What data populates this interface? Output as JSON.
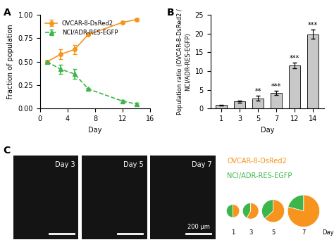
{
  "chart_data": [
    {
      "type": "line",
      "label": "A",
      "x_label": "Day",
      "y_label": "Fraction of population",
      "xlim": [
        0,
        16
      ],
      "xticks": [
        0,
        4,
        8,
        12,
        16
      ],
      "ylim": [
        0,
        1
      ],
      "yticks": [
        {
          "value": 0,
          "label": "0.00"
        },
        {
          "value": 0.25,
          "label": "0.25"
        },
        {
          "value": 0.5,
          "label": "0.50"
        },
        {
          "value": 0.75,
          "label": "0.75"
        },
        {
          "value": 1,
          "label": "1.00"
        }
      ],
      "legend": "upper left",
      "x": [
        1,
        3,
        5,
        7,
        12,
        14
      ],
      "series": [
        {
          "name": "OVCAR-8-DsRed2",
          "color": "#f7941d",
          "marker": "circle",
          "line_style": "solid",
          "values": [
            0.5,
            0.58,
            0.63,
            0.79,
            0.92,
            0.95
          ],
          "errors": [
            0.01,
            0.05,
            0.05,
            0.01,
            0.01,
            0.01
          ]
        },
        {
          "name": "NCI/ADR-RES-EGFP",
          "color": "#3cb54a",
          "marker": "triangle",
          "line_style": "dashed",
          "values": [
            0.5,
            0.42,
            0.37,
            0.21,
            0.08,
            0.05
          ],
          "errors": [
            0.01,
            0.05,
            0.05,
            0.01,
            0.01,
            0.01
          ]
        }
      ]
    },
    {
      "type": "bar",
      "label": "B",
      "x_label": "Day",
      "y_label": "Population ratio (OVCAR-8-DsRed2 /\nNCI/ADR-RES-EGFP)",
      "categories": [
        "1",
        "3",
        "5",
        "7",
        "12",
        "14"
      ],
      "values": [
        1,
        1.9,
        2.8,
        4.2,
        11.5,
        19.8
      ],
      "errors": [
        0.1,
        0.3,
        0.6,
        0.5,
        0.8,
        1.2
      ],
      "significance": [
        null,
        null,
        "**",
        "***",
        "***",
        "***"
      ],
      "color": "#c8c8c8",
      "ylim": [
        0,
        25
      ],
      "yticks": [
        0,
        5,
        10,
        15,
        20,
        25
      ]
    },
    {
      "type": "image_panel",
      "label": "C",
      "images": [
        "Day 3",
        "Day 5",
        "Day 7"
      ],
      "scale_bar": "200 μm",
      "pies": {
        "x": [
          "1",
          "3",
          "5",
          "7"
        ],
        "x_label": "Day",
        "sizes": [
          1,
          1.5,
          3,
          6
        ],
        "series": [
          {
            "name": "OVCAR-8-DsRed2",
            "color": "#f7941d",
            "values": [
              0.5,
              0.58,
              0.63,
              0.79
            ]
          },
          {
            "name": "NCI/ADR-RES-EGFP",
            "color": "#3cb54a",
            "values": [
              0.5,
              0.42,
              0.37,
              0.21
            ]
          }
        ]
      }
    }
  ]
}
